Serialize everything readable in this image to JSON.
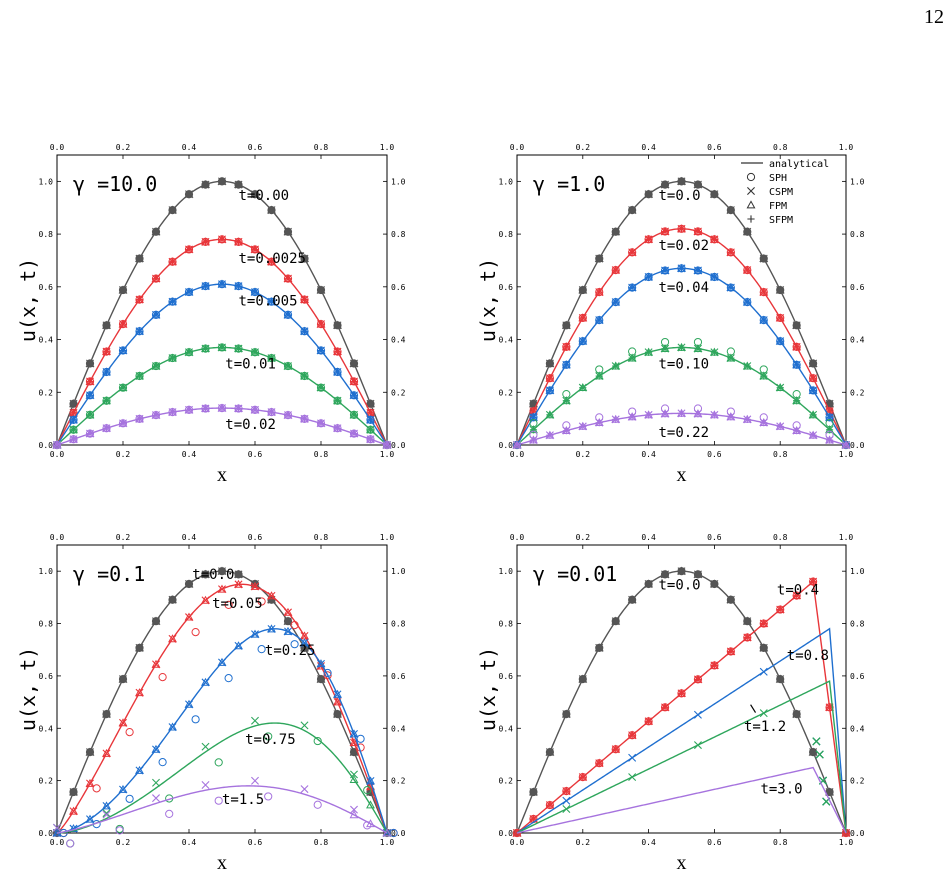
{
  "page_number": "12",
  "colors": {
    "gray": "#555555",
    "red": "#e8363a",
    "blue": "#1f6fcf",
    "green": "#2ea65c",
    "purple": "#a673de"
  },
  "legend": {
    "entries": [
      {
        "label": "analytical",
        "marker": "line"
      },
      {
        "label": "SPH",
        "marker": "circle"
      },
      {
        "label": "CSPM",
        "marker": "cross"
      },
      {
        "label": "FPM",
        "marker": "triangle"
      },
      {
        "label": "SFPM",
        "marker": "plus"
      }
    ]
  },
  "chart_data": [
    {
      "type": "line",
      "title": "γ =10.0",
      "xlabel": "x",
      "ylabel": "u(x, t)",
      "xlim": [
        0,
        1
      ],
      "ylim": [
        0,
        1.1
      ],
      "xticks": [
        "0.0",
        "0.2",
        "0.4",
        "0.6",
        "0.8",
        "1.0"
      ],
      "yticks": [
        "0.0",
        "0.2",
        "0.4",
        "0.6",
        "0.8",
        "1.0"
      ],
      "series": [
        {
          "name": "t=0.00",
          "color": "gray",
          "analytical": {
            "kind": "sine",
            "peak": 1.0
          },
          "markers": "clean"
        },
        {
          "name": "t=0.0025",
          "color": "red",
          "analytical": {
            "kind": "sine",
            "peak": 0.78
          },
          "markers": "clean"
        },
        {
          "name": "t=0.005",
          "color": "blue",
          "analytical": {
            "kind": "sine",
            "peak": 0.61
          },
          "markers": "clean"
        },
        {
          "name": "t=0.01",
          "color": "green",
          "analytical": {
            "kind": "sine",
            "peak": 0.37
          },
          "markers": "clean"
        },
        {
          "name": "t=0.02",
          "color": "purple",
          "analytical": {
            "kind": "sine",
            "peak": 0.14
          },
          "markers": "clean"
        }
      ],
      "annotations": [
        {
          "text": "t=0.00",
          "x": 0.55,
          "y": 0.93
        },
        {
          "text": "t=0.0025",
          "x": 0.55,
          "y": 0.69
        },
        {
          "text": "t=0.005",
          "x": 0.55,
          "y": 0.53
        },
        {
          "text": "t=0.01",
          "x": 0.51,
          "y": 0.29
        },
        {
          "text": "t=0.02",
          "x": 0.51,
          "y": 0.06
        }
      ]
    },
    {
      "type": "line",
      "title": "γ =1.0",
      "xlabel": "x",
      "ylabel": "u(x, t)",
      "xlim": [
        0,
        1
      ],
      "ylim": [
        0,
        1.1
      ],
      "xticks": [
        "0.0",
        "0.2",
        "0.4",
        "0.6",
        "0.8",
        "1.0"
      ],
      "yticks": [
        "0.0",
        "0.2",
        "0.4",
        "0.6",
        "0.8",
        "1.0"
      ],
      "series": [
        {
          "name": "t=0.0",
          "color": "gray",
          "analytical": {
            "kind": "sine",
            "peak": 1.0
          },
          "markers": "clean"
        },
        {
          "name": "t=0.02",
          "color": "red",
          "analytical": {
            "kind": "sine",
            "peak": 0.82
          },
          "markers": "clean"
        },
        {
          "name": "t=0.04",
          "color": "blue",
          "analytical": {
            "kind": "sine",
            "peak": 0.67
          },
          "markers": "clean"
        },
        {
          "name": "t=0.10",
          "color": "green",
          "analytical": {
            "kind": "sine",
            "peak": 0.37
          },
          "markers": "sph"
        },
        {
          "name": "t=0.22",
          "color": "purple",
          "analytical": {
            "kind": "sine",
            "peak": 0.12
          },
          "markers": "sph"
        }
      ],
      "annotations": [
        {
          "text": "t=0.0",
          "x": 0.43,
          "y": 0.93
        },
        {
          "text": "t=0.02",
          "x": 0.43,
          "y": 0.74
        },
        {
          "text": "t=0.04",
          "x": 0.43,
          "y": 0.58
        },
        {
          "text": "t=0.10",
          "x": 0.43,
          "y": 0.29
        },
        {
          "text": "t=0.22",
          "x": 0.43,
          "y": 0.03
        }
      ],
      "legend_position": "top-right"
    },
    {
      "type": "line",
      "title": "γ =0.1",
      "xlabel": "x",
      "ylabel": "u(x, t)",
      "xlim": [
        0,
        1
      ],
      "ylim": [
        0,
        1.1
      ],
      "xticks": [
        "0.0",
        "0.2",
        "0.4",
        "0.6",
        "0.8",
        "1.0"
      ],
      "yticks": [
        "0.0",
        "0.2",
        "0.4",
        "0.6",
        "0.8",
        "1.0"
      ],
      "series": [
        {
          "name": "t=0.0",
          "color": "gray",
          "analytical": {
            "kind": "skew",
            "peak": 1.0,
            "xp": 0.5
          },
          "markers": "clean"
        },
        {
          "name": "t=0.05",
          "color": "red",
          "analytical": {
            "kind": "skew",
            "peak": 0.95,
            "xp": 0.56
          },
          "markers": "scatter"
        },
        {
          "name": "t=0.25",
          "color": "blue",
          "analytical": {
            "kind": "skew",
            "peak": 0.78,
            "xp": 0.66
          },
          "markers": "scatter"
        },
        {
          "name": "t=0.75",
          "color": "green",
          "analytical": {
            "kind": "skew",
            "peak": 0.42,
            "xp": 0.66
          },
          "markers": "sparse"
        },
        {
          "name": "t=1.5",
          "color": "purple",
          "analytical": {
            "kind": "skew",
            "peak": 0.18,
            "xp": 0.58
          },
          "markers": "sparse"
        }
      ],
      "annotations": [
        {
          "text": "t=0.0",
          "x": 0.41,
          "y": 0.97
        },
        {
          "text": "t=0.05",
          "x": 0.47,
          "y": 0.86
        },
        {
          "text": "t=0.25",
          "x": 0.63,
          "y": 0.68
        },
        {
          "text": "t=0.75",
          "x": 0.57,
          "y": 0.34
        },
        {
          "text": "t=1.5",
          "x": 0.5,
          "y": 0.11
        }
      ]
    },
    {
      "type": "line",
      "title": "γ =0.01",
      "xlabel": "x",
      "ylabel": "u(x, t)",
      "xlim": [
        0,
        1
      ],
      "ylim": [
        0,
        1.1
      ],
      "xticks": [
        "0.0",
        "0.2",
        "0.4",
        "0.6",
        "0.8",
        "1.0"
      ],
      "yticks": [
        "0.0",
        "0.2",
        "0.4",
        "0.6",
        "0.8",
        "1.0"
      ],
      "series": [
        {
          "name": "t=0.0",
          "color": "gray",
          "analytical": {
            "kind": "sine",
            "peak": 1.0
          },
          "markers": "clean"
        },
        {
          "name": "t=0.4",
          "color": "red",
          "analytical": {
            "kind": "shock",
            "peak": 0.96,
            "xp": 0.9
          },
          "markers": "clean"
        },
        {
          "name": "t=0.8",
          "color": "blue",
          "analytical": {
            "kind": "shock",
            "peak": 0.78,
            "xp": 0.95
          },
          "markers": "shock"
        },
        {
          "name": "t=1.2",
          "color": "green",
          "analytical": {
            "kind": "shock",
            "peak": 0.58,
            "xp": 0.95
          },
          "markers": "shock"
        },
        {
          "name": "t=3.0",
          "color": "purple",
          "analytical": {
            "kind": "shock",
            "peak": 0.25,
            "xp": 0.9
          },
          "markers": "none"
        }
      ],
      "annotations": [
        {
          "text": "t=0.0",
          "x": 0.43,
          "y": 0.93
        },
        {
          "text": "t=0.4",
          "x": 0.79,
          "y": 0.91
        },
        {
          "text": "t=0.8",
          "x": 0.82,
          "y": 0.66
        },
        {
          "text": "t=1.2",
          "x": 0.69,
          "y": 0.39
        },
        {
          "text": "t=3.0",
          "x": 0.74,
          "y": 0.15
        }
      ]
    }
  ]
}
